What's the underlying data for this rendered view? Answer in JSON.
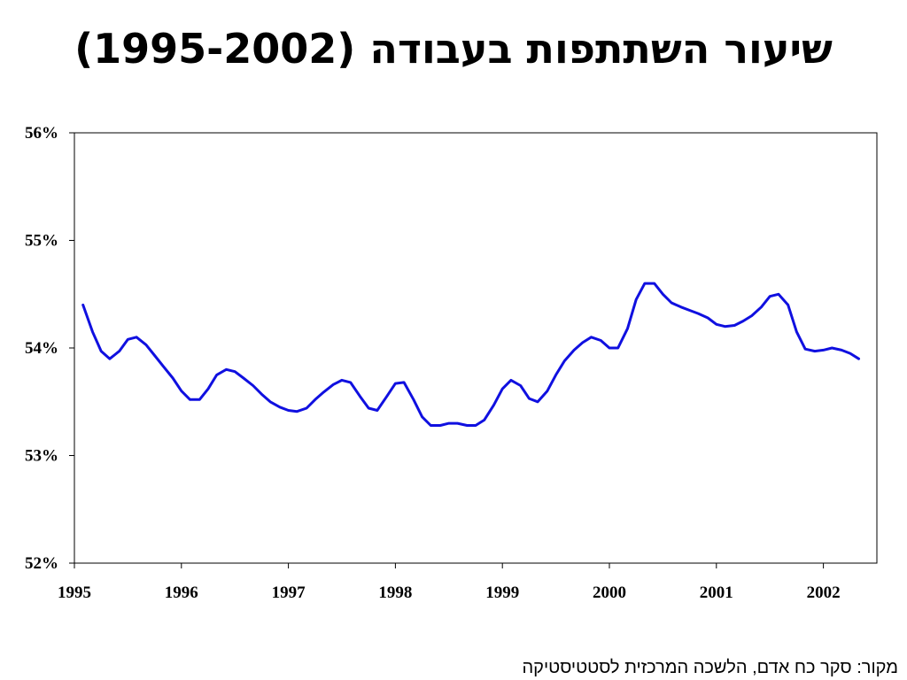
{
  "title": "שיעור השתתפות בעבודה (1995-2002)",
  "source": "מקור: סקר כח אדם, הלשכה המרכזית לסטטיסטיקה",
  "colors": {
    "line": "#1010e0",
    "axis": "#000000",
    "background": "#ffffff"
  },
  "chart_data": {
    "type": "line",
    "title": "שיעור השתתפות בעבודה (1995-2002)",
    "xlabel": "",
    "ylabel": "",
    "grid": false,
    "legend": "none",
    "xlim": [
      1995,
      2002.5
    ],
    "ylim": [
      52,
      56
    ],
    "x_ticks": [
      1995,
      1996,
      1997,
      1998,
      1999,
      2000,
      2001,
      2002
    ],
    "x_tick_labels": [
      "1995",
      "1996",
      "1997",
      "1998",
      "1999",
      "2000",
      "2001",
      "2002"
    ],
    "y_ticks": [
      52,
      53,
      54,
      55,
      56
    ],
    "y_tick_labels": [
      "52%",
      "53%",
      "54%",
      "55%",
      "56%"
    ],
    "series": [
      {
        "values": [
          [
            1995.08,
            54.4
          ],
          [
            1995.17,
            54.15
          ],
          [
            1995.25,
            53.97
          ],
          [
            1995.33,
            53.9
          ],
          [
            1995.42,
            53.97
          ],
          [
            1995.5,
            54.08
          ],
          [
            1995.58,
            54.1
          ],
          [
            1995.67,
            54.03
          ],
          [
            1995.75,
            53.93
          ],
          [
            1995.83,
            53.83
          ],
          [
            1995.92,
            53.72
          ],
          [
            1996.0,
            53.6
          ],
          [
            1996.08,
            53.52
          ],
          [
            1996.17,
            53.52
          ],
          [
            1996.25,
            53.62
          ],
          [
            1996.33,
            53.75
          ],
          [
            1996.42,
            53.8
          ],
          [
            1996.5,
            53.78
          ],
          [
            1996.58,
            53.72
          ],
          [
            1996.67,
            53.65
          ],
          [
            1996.75,
            53.57
          ],
          [
            1996.83,
            53.5
          ],
          [
            1996.92,
            53.45
          ],
          [
            1997.0,
            53.42
          ],
          [
            1997.08,
            53.41
          ],
          [
            1997.17,
            53.44
          ],
          [
            1997.25,
            53.52
          ],
          [
            1997.33,
            53.59
          ],
          [
            1997.42,
            53.66
          ],
          [
            1997.5,
            53.7
          ],
          [
            1997.58,
            53.68
          ],
          [
            1997.67,
            53.55
          ],
          [
            1997.75,
            53.44
          ],
          [
            1997.83,
            53.42
          ],
          [
            1997.92,
            53.55
          ],
          [
            1998.0,
            53.67
          ],
          [
            1998.08,
            53.68
          ],
          [
            1998.17,
            53.52
          ],
          [
            1998.25,
            53.36
          ],
          [
            1998.33,
            53.28
          ],
          [
            1998.42,
            53.28
          ],
          [
            1998.5,
            53.3
          ],
          [
            1998.58,
            53.3
          ],
          [
            1998.67,
            53.28
          ],
          [
            1998.75,
            53.28
          ],
          [
            1998.83,
            53.33
          ],
          [
            1998.92,
            53.47
          ],
          [
            1999.0,
            53.62
          ],
          [
            1999.08,
            53.7
          ],
          [
            1999.17,
            53.65
          ],
          [
            1999.25,
            53.53
          ],
          [
            1999.33,
            53.5
          ],
          [
            1999.42,
            53.6
          ],
          [
            1999.5,
            53.75
          ],
          [
            1999.58,
            53.88
          ],
          [
            1999.67,
            53.98
          ],
          [
            1999.75,
            54.05
          ],
          [
            1999.83,
            54.1
          ],
          [
            1999.92,
            54.07
          ],
          [
            2000.0,
            54.0
          ],
          [
            2000.08,
            54.0
          ],
          [
            2000.17,
            54.18
          ],
          [
            2000.25,
            54.45
          ],
          [
            2000.33,
            54.6
          ],
          [
            2000.42,
            54.6
          ],
          [
            2000.5,
            54.5
          ],
          [
            2000.58,
            54.42
          ],
          [
            2000.67,
            54.38
          ],
          [
            2000.75,
            54.35
          ],
          [
            2000.83,
            54.32
          ],
          [
            2000.92,
            54.28
          ],
          [
            2001.0,
            54.22
          ],
          [
            2001.08,
            54.2
          ],
          [
            2001.17,
            54.21
          ],
          [
            2001.25,
            54.25
          ],
          [
            2001.33,
            54.3
          ],
          [
            2001.42,
            54.38
          ],
          [
            2001.5,
            54.48
          ],
          [
            2001.58,
            54.5
          ],
          [
            2001.67,
            54.4
          ],
          [
            2001.75,
            54.15
          ],
          [
            2001.83,
            53.99
          ],
          [
            2001.92,
            53.97
          ],
          [
            2002.0,
            53.98
          ],
          [
            2002.08,
            54.0
          ],
          [
            2002.17,
            53.98
          ],
          [
            2002.25,
            53.95
          ],
          [
            2002.33,
            53.9
          ]
        ]
      }
    ]
  }
}
